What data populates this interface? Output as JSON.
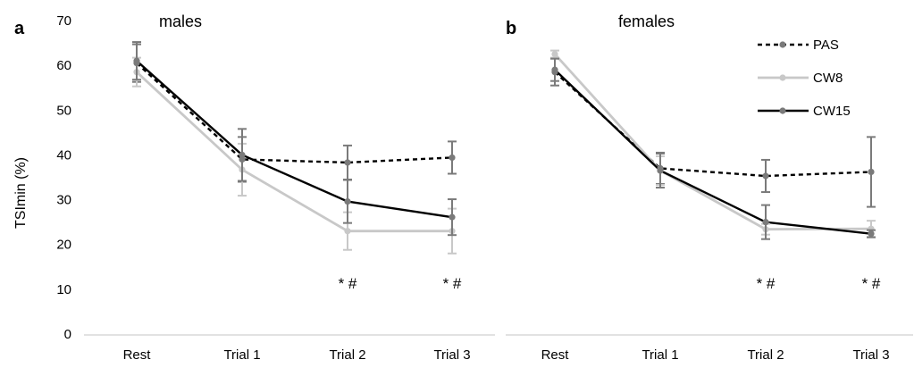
{
  "ylabel": "TSImin (%)",
  "yticks": [
    "0",
    "10",
    "20",
    "30",
    "40",
    "50",
    "60",
    "70"
  ],
  "chart_data": [
    {
      "type": "line",
      "panel": "a",
      "title": "males",
      "ylabel": "TSImin (%)",
      "ylim": [
        0,
        70
      ],
      "categories": [
        "Rest",
        "Trial 1",
        "Trial 2",
        "Trial 3"
      ],
      "series": [
        {
          "name": "PAS",
          "color": "#000000",
          "marker_color": "#7a7a7a",
          "dashed": true,
          "values": [
            60.5,
            39.0,
            38.3,
            39.4
          ],
          "errors": [
            4.2,
            5.0,
            3.8,
            3.6
          ]
        },
        {
          "name": "CW8",
          "color": "#c8c8c8",
          "marker_color": "#c8c8c8",
          "dashed": false,
          "values": [
            58.5,
            36.7,
            23.0,
            23.0
          ],
          "errors": [
            3.2,
            5.8,
            4.2,
            5.0
          ]
        },
        {
          "name": "CW15",
          "color": "#000000",
          "marker_color": "#7a7a7a",
          "dashed": false,
          "values": [
            61.0,
            40.0,
            29.6,
            26.1
          ],
          "errors": [
            4.2,
            5.8,
            4.8,
            4.0
          ]
        }
      ],
      "annotations": [
        {
          "category": "Trial 2",
          "text": "* #"
        },
        {
          "category": "Trial 3",
          "text": "* #"
        }
      ]
    },
    {
      "type": "line",
      "panel": "b",
      "title": "females",
      "ylim": [
        0,
        70
      ],
      "categories": [
        "Rest",
        "Trial 1",
        "Trial 2",
        "Trial 3"
      ],
      "legend_position": "top-right",
      "series": [
        {
          "name": "PAS",
          "color": "#000000",
          "marker_color": "#7a7a7a",
          "dashed": true,
          "values": [
            58.5,
            37.0,
            35.3,
            36.2
          ],
          "errors": [
            3.0,
            3.5,
            3.6,
            7.8
          ]
        },
        {
          "name": "CW8",
          "color": "#c8c8c8",
          "marker_color": "#c8c8c8",
          "dashed": false,
          "values": [
            62.5,
            36.5,
            23.4,
            23.5
          ],
          "errors": [
            0.8,
            3.2,
            1.2,
            1.8
          ]
        },
        {
          "name": "CW15",
          "color": "#000000",
          "marker_color": "#7a7a7a",
          "dashed": false,
          "values": [
            59.0,
            36.5,
            25.0,
            22.4
          ],
          "errors": [
            2.5,
            3.8,
            3.8,
            0.8
          ]
        }
      ],
      "annotations": [
        {
          "category": "Trial 2",
          "text": "* #"
        },
        {
          "category": "Trial 3",
          "text": "* #"
        }
      ]
    }
  ]
}
